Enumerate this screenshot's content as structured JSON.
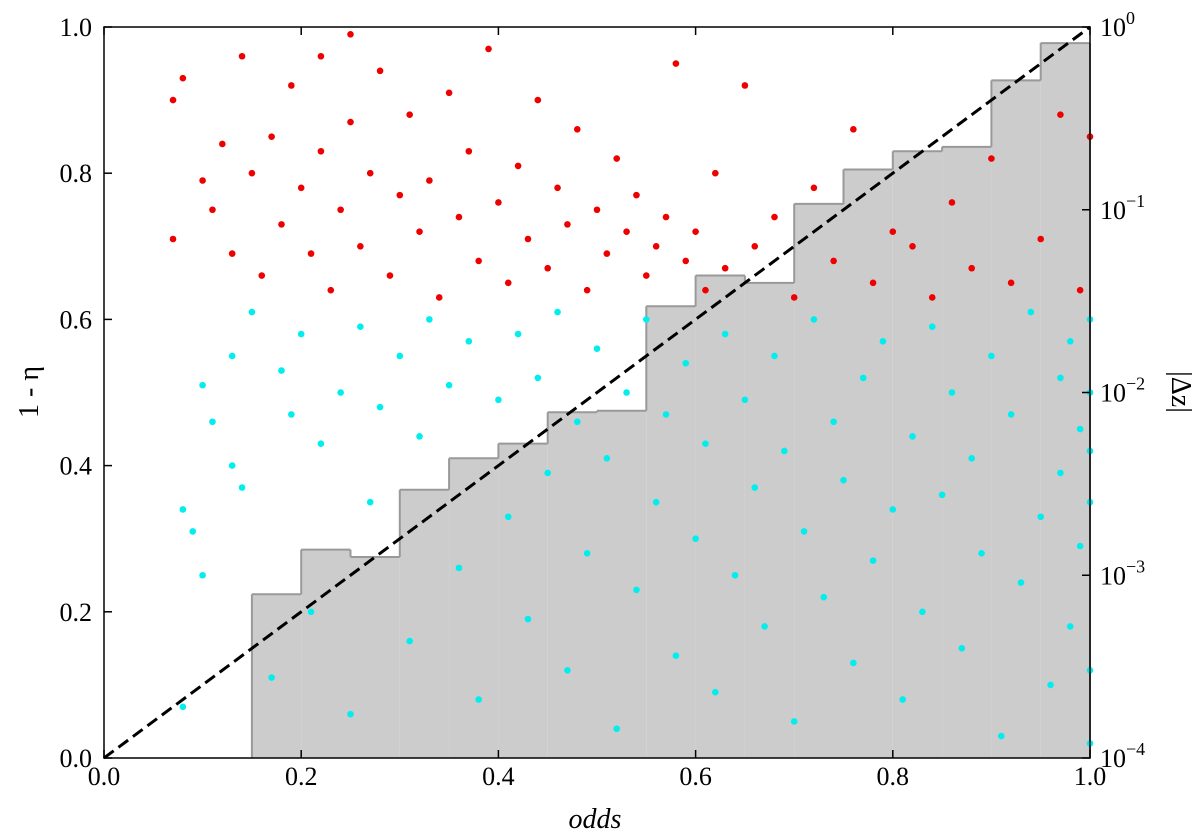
{
  "chart_data": {
    "type": "scatter",
    "xlabel": "odds",
    "ylabel": "1 - η",
    "y2label": "|Δz|",
    "xlim": [
      0,
      1
    ],
    "ylim": [
      0,
      1
    ],
    "xticks": [
      {
        "value": 0,
        "label": "0.0"
      },
      0.2,
      0.4,
      0.6,
      0.8,
      {
        "value": 1,
        "label": "1.0"
      }
    ],
    "yticks": [
      {
        "value": 0,
        "label": "0.0"
      },
      0.2,
      0.4,
      0.6,
      0.8,
      {
        "value": 1,
        "label": "1.0"
      }
    ],
    "y2scale": "log",
    "y2lim": [
      0.0001,
      1
    ],
    "y2ticks": [
      {
        "value": 0.0001,
        "label": "10",
        "exponent": "−4"
      },
      {
        "value": 0.001,
        "label": "10",
        "exponent": "−3"
      },
      {
        "value": 0.01,
        "label": "10",
        "exponent": "−2"
      },
      {
        "value": 0.1,
        "label": "10",
        "exponent": "−1"
      },
      {
        "value": 1,
        "label": "10",
        "exponent": "0"
      }
    ],
    "histogram": {
      "color": "#cccccc",
      "edgecolor": "#999999",
      "bins": [
        0.15,
        0.2,
        0.25,
        0.3,
        0.35,
        0.4,
        0.45,
        0.5,
        0.55,
        0.6,
        0.65,
        0.7,
        0.75,
        0.8,
        0.85,
        0.9,
        0.95,
        1.0
      ],
      "counts": [
        0.224,
        0.285,
        0.275,
        0.367,
        0.41,
        0.43,
        0.473,
        0.475,
        0.618,
        0.66,
        0.65,
        0.758,
        0.805,
        0.83,
        0.836,
        0.927,
        0.978
      ]
    },
    "reference_line": {
      "color": "#000000",
      "x": [
        0,
        1
      ],
      "values": [
        0,
        1
      ]
    },
    "series": [
      {
        "color": "#ee0000",
        "x": [
          0.07,
          0.07,
          0.08,
          0.1,
          0.11,
          0.12,
          0.13,
          0.14,
          0.15,
          0.16,
          0.17,
          0.18,
          0.19,
          0.2,
          0.21,
          0.22,
          0.22,
          0.23,
          0.24,
          0.25,
          0.25,
          0.26,
          0.27,
          0.28,
          0.29,
          0.3,
          0.31,
          0.32,
          0.33,
          0.34,
          0.35,
          0.36,
          0.37,
          0.38,
          0.39,
          0.4,
          0.41,
          0.42,
          0.43,
          0.44,
          0.45,
          0.46,
          0.47,
          0.48,
          0.49,
          0.5,
          0.51,
          0.52,
          0.53,
          0.54,
          0.55,
          0.56,
          0.57,
          0.58,
          0.59,
          0.6,
          0.61,
          0.62,
          0.63,
          0.65,
          0.66,
          0.68,
          0.7,
          0.72,
          0.74,
          0.76,
          0.78,
          0.8,
          0.82,
          0.84,
          0.86,
          0.88,
          0.9,
          0.92,
          0.95,
          0.97,
          0.99,
          1.0
        ],
        "values": [
          0.9,
          0.71,
          0.93,
          0.79,
          0.75,
          0.84,
          0.69,
          0.96,
          0.8,
          0.66,
          0.85,
          0.73,
          0.92,
          0.78,
          0.69,
          0.96,
          0.83,
          0.64,
          0.75,
          0.99,
          0.87,
          0.7,
          0.8,
          0.94,
          0.66,
          0.77,
          0.88,
          0.72,
          0.79,
          0.63,
          0.91,
          0.74,
          0.83,
          0.68,
          0.97,
          0.76,
          0.65,
          0.81,
          0.71,
          0.9,
          0.67,
          0.78,
          0.73,
          0.86,
          0.64,
          0.75,
          0.69,
          0.82,
          0.72,
          0.77,
          0.66,
          0.7,
          0.74,
          0.95,
          0.68,
          0.72,
          0.64,
          0.8,
          0.67,
          0.92,
          0.7,
          0.74,
          0.63,
          0.78,
          0.68,
          0.86,
          0.65,
          0.72,
          0.7,
          0.63,
          0.76,
          0.67,
          0.82,
          0.65,
          0.71,
          0.88,
          0.64,
          0.85
        ]
      },
      {
        "color": "#00eeee",
        "x": [
          0.08,
          0.08,
          0.09,
          0.1,
          0.1,
          0.11,
          0.13,
          0.13,
          0.14,
          0.15,
          0.17,
          0.18,
          0.19,
          0.2,
          0.21,
          0.22,
          0.24,
          0.25,
          0.26,
          0.27,
          0.28,
          0.3,
          0.31,
          0.32,
          0.33,
          0.35,
          0.36,
          0.37,
          0.38,
          0.4,
          0.41,
          0.42,
          0.43,
          0.44,
          0.45,
          0.46,
          0.47,
          0.48,
          0.49,
          0.5,
          0.51,
          0.52,
          0.53,
          0.54,
          0.55,
          0.56,
          0.57,
          0.58,
          0.59,
          0.6,
          0.61,
          0.62,
          0.63,
          0.64,
          0.65,
          0.66,
          0.67,
          0.68,
          0.69,
          0.7,
          0.71,
          0.72,
          0.73,
          0.74,
          0.75,
          0.76,
          0.77,
          0.78,
          0.79,
          0.8,
          0.81,
          0.82,
          0.83,
          0.84,
          0.85,
          0.86,
          0.87,
          0.88,
          0.89,
          0.9,
          0.91,
          0.92,
          0.93,
          0.94,
          0.95,
          0.96,
          0.97,
          0.97,
          0.98,
          0.98,
          0.99,
          0.99,
          1.0,
          1.0,
          1.0,
          1.0,
          1.0,
          1.0
        ],
        "values": [
          0.07,
          0.34,
          0.31,
          0.51,
          0.25,
          0.46,
          0.55,
          0.4,
          0.37,
          0.61,
          0.11,
          0.53,
          0.47,
          0.58,
          0.2,
          0.43,
          0.5,
          0.06,
          0.59,
          0.35,
          0.48,
          0.55,
          0.16,
          0.44,
          0.6,
          0.51,
          0.26,
          0.57,
          0.08,
          0.49,
          0.33,
          0.58,
          0.19,
          0.52,
          0.39,
          0.61,
          0.12,
          0.46,
          0.28,
          0.56,
          0.41,
          0.04,
          0.5,
          0.23,
          0.6,
          0.35,
          0.47,
          0.14,
          0.54,
          0.3,
          0.43,
          0.09,
          0.58,
          0.25,
          0.49,
          0.37,
          0.18,
          0.55,
          0.42,
          0.05,
          0.31,
          0.6,
          0.22,
          0.46,
          0.38,
          0.13,
          0.52,
          0.27,
          0.57,
          0.34,
          0.08,
          0.44,
          0.2,
          0.59,
          0.36,
          0.5,
          0.15,
          0.41,
          0.28,
          0.55,
          0.03,
          0.47,
          0.24,
          0.61,
          0.33,
          0.1,
          0.52,
          0.39,
          0.18,
          0.57,
          0.29,
          0.45,
          0.5,
          0.35,
          0.12,
          0.6,
          0.42,
          0.02
        ]
      }
    ]
  }
}
